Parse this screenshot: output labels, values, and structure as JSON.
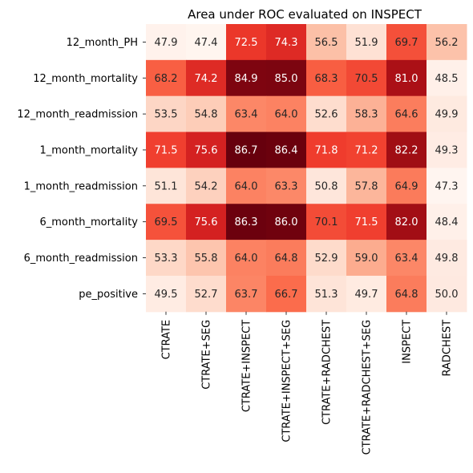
{
  "chart_data": {
    "type": "heatmap",
    "title": "Area under ROC evaluated on INSPECT",
    "colormap": "Reds",
    "value_range": [
      47.3,
      86.7
    ],
    "rows": [
      "12_month_PH",
      "12_month_mortality",
      "12_month_readmission",
      "1_month_mortality",
      "1_month_readmission",
      "6_month_mortality",
      "6_month_readmission",
      "pe_positive"
    ],
    "columns": [
      "CTRATE",
      "CTRATE+SEG",
      "CTRATE+INSPECT",
      "CTRATE+INSPECT+SEG",
      "CTRATE+RADCHEST",
      "CTRATE+RADCHEST+SEG",
      "INSPECT",
      "RADCHEST"
    ],
    "values": [
      [
        47.9,
        47.4,
        72.5,
        74.3,
        56.5,
        51.9,
        69.7,
        56.2
      ],
      [
        68.2,
        74.2,
        84.9,
        85.0,
        68.3,
        70.5,
        81.0,
        48.5
      ],
      [
        53.5,
        54.8,
        63.4,
        64.0,
        52.6,
        58.3,
        64.6,
        49.9
      ],
      [
        71.5,
        75.6,
        86.7,
        86.4,
        71.8,
        71.2,
        82.2,
        49.3
      ],
      [
        51.1,
        54.2,
        64.0,
        63.3,
        50.8,
        57.8,
        64.9,
        47.3
      ],
      [
        69.5,
        75.6,
        86.3,
        86.0,
        70.1,
        71.5,
        82.0,
        48.4
      ],
      [
        53.3,
        55.8,
        64.0,
        64.8,
        52.9,
        59.0,
        63.4,
        49.8
      ],
      [
        49.5,
        52.7,
        63.7,
        66.7,
        51.3,
        49.7,
        64.8,
        50.0
      ]
    ],
    "legend": "none"
  }
}
